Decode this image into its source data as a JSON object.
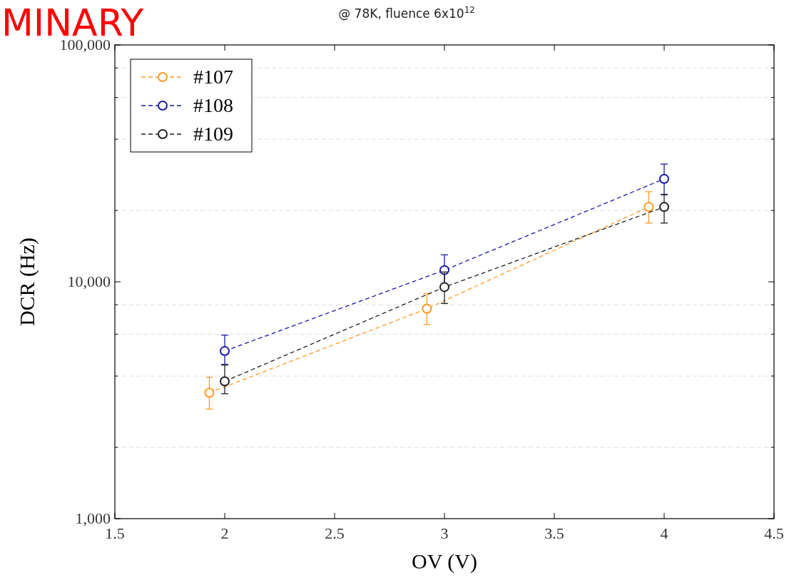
{
  "chart_data": {
    "type": "line",
    "title": "@ 78K, fluence 6x10$^{12}$",
    "xlabel": "OV (V)",
    "ylabel": "DCR (Hz)",
    "annotations": [
      "MINARY"
    ],
    "log": "y",
    "grid": "y",
    "legend": "top left",
    "marker": "circle",
    "line_style": "dashed",
    "xlim": [
      1.5,
      4.5
    ],
    "xticks": [
      1.5,
      2,
      2.5,
      3,
      3.5,
      4,
      4.5
    ],
    "ylim": [
      1000,
      100000
    ],
    "yticks": [
      {
        "value": 1000,
        "label": "1,000"
      },
      {
        "value": 2000,
        "label": null
      },
      {
        "value": 4000,
        "label": null
      },
      {
        "value": 6000,
        "label": null
      },
      {
        "value": 8000,
        "label": null
      },
      {
        "value": 10000,
        "label": "10,000"
      },
      {
        "value": 20000,
        "label": null
      },
      {
        "value": 40000,
        "label": null
      },
      {
        "value": 60000,
        "label": null
      },
      {
        "value": 80000,
        "label": null
      },
      {
        "value": 100000,
        "label": "100,000"
      }
    ],
    "series": [
      {
        "name": "#107",
        "color": "#ff9922",
        "x": [
          1.93,
          2.92,
          3.93
        ],
        "values": [
          3400,
          7700,
          20700
        ],
        "errors": [
          [
            2900,
            3950
          ],
          [
            6600,
            8900
          ],
          [
            17700,
            24000
          ]
        ]
      },
      {
        "name": "#108",
        "color": "#1a1aaa",
        "x": [
          2,
          3,
          4
        ],
        "values": [
          5100,
          11200,
          27200
        ],
        "errors": [
          [
            4480,
            5950
          ],
          [
            9600,
            13000
          ],
          [
            23300,
            31400
          ]
        ]
      },
      {
        "name": "#109",
        "color": "#222222",
        "x": [
          2,
          3,
          4
        ],
        "values": [
          3800,
          9500,
          20700
        ],
        "errors": [
          [
            3370,
            4450
          ],
          [
            8100,
            11000
          ],
          [
            17700,
            23400
          ]
        ]
      }
    ]
  }
}
